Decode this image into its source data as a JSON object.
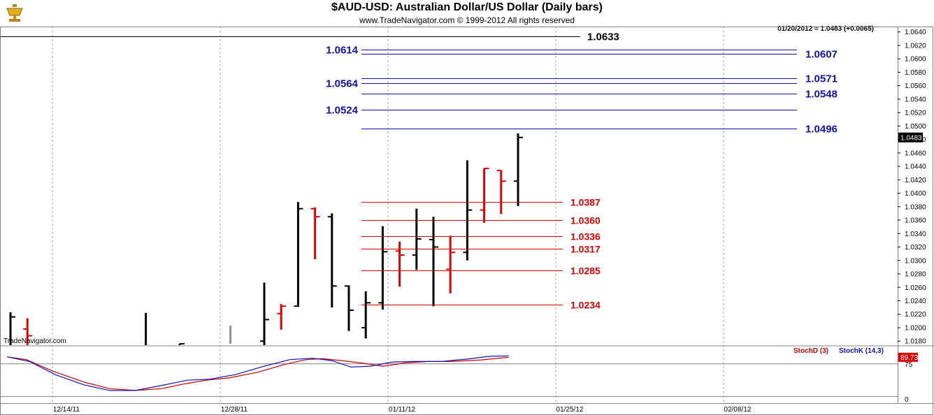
{
  "header": {
    "title": "$AUD-USD:  Australian Dollar/US Dollar  (Daily bars)",
    "subtitle": "www.TradeNavigator.com © 1999-2012 All rights reserved",
    "readout": "01/20/2012 = 1.0483 (+0.0065)",
    "watermark": "TradeNavigator.com",
    "logo_icon": "trophy-icon"
  },
  "colors": {
    "up_bar": "#000000",
    "down_bar": "#e00000",
    "resistance": "#1010b0",
    "support": "#e00000",
    "stoch_d": "#cc0000",
    "stoch_k": "#1010c0",
    "grid": "#a0a0a0"
  },
  "chart_data": [
    {
      "type": "ohlc",
      "name": "price",
      "date_labels": [
        "12/14/11",
        "12/28/11",
        "01/11/12",
        "01/25/12",
        "02/08/12"
      ],
      "y_ticks": [
        "1.0640",
        "1.0620",
        "1.0600",
        "1.0580",
        "1.0560",
        "1.0540",
        "1.0520",
        "1.0500",
        "1.0480",
        "1.0460",
        "1.0440",
        "1.0420",
        "1.0400",
        "1.0380",
        "1.0360",
        "1.0340",
        "1.0320",
        "1.0300",
        "1.0280",
        "1.0260",
        "1.0240",
        "1.0220",
        "1.0200",
        "1.0180"
      ],
      "ylim": [
        1.0174,
        1.0648
      ],
      "last_price_label": "1.0483",
      "bars": [
        {
          "o": null,
          "h": 1.0223,
          "l": 1.0174,
          "c": 1.0216,
          "dir": "up"
        },
        {
          "o": 1.0198,
          "h": 1.0214,
          "l": 1.0174,
          "c": 1.0188,
          "dir": "down"
        },
        {
          "o": null,
          "h": null,
          "l": null,
          "c": null,
          "dir": "up"
        },
        {
          "o": null,
          "h": null,
          "l": null,
          "c": null,
          "dir": "up"
        },
        {
          "o": null,
          "h": null,
          "l": null,
          "c": null,
          "dir": "up"
        },
        {
          "o": null,
          "h": null,
          "l": null,
          "c": null,
          "dir": "up"
        },
        {
          "o": null,
          "h": null,
          "l": null,
          "c": null,
          "dir": "up"
        },
        {
          "o": null,
          "h": null,
          "l": null,
          "c": null,
          "dir": "up"
        },
        {
          "o": null,
          "h": 1.0222,
          "l": 1.0174,
          "c": null,
          "dir": "up"
        },
        {
          "o": null,
          "h": null,
          "l": null,
          "c": null,
          "dir": "up"
        },
        {
          "o": null,
          "h": 1.0176,
          "l": 1.0174,
          "c": 1.0176,
          "dir": "up"
        },
        {
          "o": null,
          "h": null,
          "l": null,
          "c": null,
          "dir": "up"
        },
        {
          "o": null,
          "h": null,
          "l": null,
          "c": null,
          "dir": "up"
        },
        {
          "o": null,
          "h": 1.0203,
          "l": 1.0176,
          "c": null,
          "dir": "gray"
        },
        {
          "o": null,
          "h": null,
          "l": null,
          "c": null,
          "dir": "up"
        },
        {
          "o": 1.018,
          "h": 1.0267,
          "l": 1.0174,
          "c": 1.0212,
          "dir": "up"
        },
        {
          "o": 1.0221,
          "h": 1.0235,
          "l": 1.0197,
          "c": 1.0232,
          "dir": "down"
        },
        {
          "o": 1.0232,
          "h": 1.0387,
          "l": 1.0231,
          "c": 1.0377,
          "dir": "up"
        },
        {
          "o": 1.0377,
          "h": 1.0379,
          "l": 1.0302,
          "c": 1.0365,
          "dir": "down"
        },
        {
          "o": 1.0365,
          "h": 1.037,
          "l": 1.023,
          "c": 1.0262,
          "dir": "up"
        },
        {
          "o": 1.0262,
          "h": 1.0263,
          "l": 1.0195,
          "c": 1.0226,
          "dir": "up"
        },
        {
          "o": 1.02,
          "h": 1.0254,
          "l": 1.0184,
          "c": 1.0237,
          "dir": "up"
        },
        {
          "o": 1.0237,
          "h": 1.0351,
          "l": 1.0227,
          "c": 1.0313,
          "dir": "up"
        },
        {
          "o": 1.0314,
          "h": 1.0328,
          "l": 1.0261,
          "c": 1.0308,
          "dir": "down"
        },
        {
          "o": 1.0308,
          "h": 1.0377,
          "l": 1.0286,
          "c": 1.0332,
          "dir": "up"
        },
        {
          "o": 1.0331,
          "h": 1.0365,
          "l": 1.0232,
          "c": 1.032,
          "dir": "up"
        },
        {
          "o": 1.0287,
          "h": 1.0337,
          "l": 1.0251,
          "c": 1.0312,
          "dir": "down"
        },
        {
          "o": 1.0312,
          "h": 1.0449,
          "l": 1.03,
          "c": 1.0375,
          "dir": "up"
        },
        {
          "o": 1.0375,
          "h": 1.0437,
          "l": 1.0356,
          "c": 1.0437,
          "dir": "down"
        },
        {
          "o": 1.0434,
          "h": 1.0434,
          "l": 1.0369,
          "c": 1.0418,
          "dir": "down"
        },
        {
          "o": 1.0418,
          "h": 1.0489,
          "l": 1.0381,
          "c": 1.0483,
          "dir": "up"
        }
      ],
      "resistance_levels": [
        {
          "value": 1.0633,
          "label": "1.0633",
          "side": "right",
          "color": "black"
        },
        {
          "value": 1.0614,
          "label": "1.0614",
          "side": "left"
        },
        {
          "value": 1.0607,
          "label": "1.0607",
          "side": "right"
        },
        {
          "value": 1.0571,
          "label": "1.0571",
          "side": "right"
        },
        {
          "value": 1.0564,
          "label": "1.0564",
          "side": "left"
        },
        {
          "value": 1.0548,
          "label": "1.0548",
          "side": "right"
        },
        {
          "value": 1.0524,
          "label": "1.0524",
          "side": "left"
        },
        {
          "value": 1.0496,
          "label": "1.0496",
          "side": "right"
        }
      ],
      "support_levels": [
        {
          "value": 1.0387,
          "label": "1.0387"
        },
        {
          "value": 1.036,
          "label": "1.0360"
        },
        {
          "value": 1.0336,
          "label": "1.0336"
        },
        {
          "value": 1.0317,
          "label": "1.0317"
        },
        {
          "value": 1.0285,
          "label": "1.0285"
        },
        {
          "value": 1.0234,
          "label": "1.0234"
        }
      ],
      "grid": true
    },
    {
      "type": "line",
      "name": "stochastic",
      "legend": [
        "StochD (3)",
        "StochK (14,3)"
      ],
      "y_ticks": [
        "75",
        "0"
      ],
      "ylim": [
        0,
        100
      ],
      "reference_lines": [
        75,
        5
      ],
      "last_value_label": "89.73",
      "series": [
        {
          "name": "StochD (3)",
          "color": "#cc0000",
          "values": [
            [
              0,
              90
            ],
            [
              12,
              84
            ],
            [
              28,
              60
            ],
            [
              48,
              36
            ],
            [
              64,
              22
            ],
            [
              80,
              18
            ],
            [
              96,
              22
            ],
            [
              110,
              32
            ],
            [
              124,
              40
            ],
            [
              138,
              45
            ],
            [
              156,
              57
            ],
            [
              172,
              73
            ],
            [
              186,
              84
            ],
            [
              196,
              86
            ],
            [
              208,
              82
            ],
            [
              222,
              76
            ],
            [
              234,
              70
            ],
            [
              248,
              77
            ],
            [
              262,
              80
            ],
            [
              276,
              80
            ],
            [
              294,
              83
            ],
            [
              312,
              89
            ]
          ]
        },
        {
          "name": "StochK (14,3)",
          "color": "#1010c0",
          "values": [
            [
              0,
              90
            ],
            [
              14,
              80
            ],
            [
              30,
              52
            ],
            [
              48,
              30
            ],
            [
              64,
              18
            ],
            [
              80,
              18
            ],
            [
              98,
              30
            ],
            [
              112,
              40
            ],
            [
              126,
              42
            ],
            [
              142,
              52
            ],
            [
              160,
              70
            ],
            [
              176,
              84
            ],
            [
              190,
              87
            ],
            [
              202,
              82
            ],
            [
              214,
              68
            ],
            [
              226,
              70
            ],
            [
              240,
              79
            ],
            [
              254,
              80
            ],
            [
              270,
              80
            ],
            [
              286,
              85
            ],
            [
              300,
              91
            ],
            [
              312,
              92
            ]
          ]
        }
      ]
    }
  ]
}
